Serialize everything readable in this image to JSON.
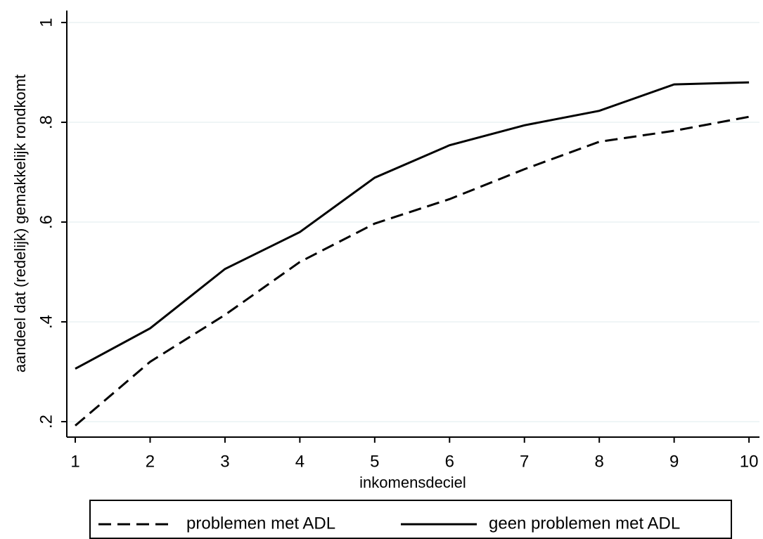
{
  "chart_data": {
    "type": "line",
    "x_label": "inkomensdeciel",
    "y_label": "aandeel dat (redelijk) gemakkelijk rondkomt",
    "x": [
      1,
      2,
      3,
      4,
      5,
      6,
      7,
      8,
      9,
      10
    ],
    "series": [
      {
        "name": "problemen met ADL",
        "color": "#000000",
        "dash": "dashed",
        "values": [
          0.192,
          0.32,
          0.414,
          0.52,
          0.597,
          0.646,
          0.706,
          0.761,
          0.783,
          0.811
        ]
      },
      {
        "name": "geen problemen met ADL",
        "color": "#000000",
        "dash": "solid",
        "values": [
          0.306,
          0.387,
          0.506,
          0.58,
          0.689,
          0.754,
          0.794,
          0.823,
          0.876,
          0.88
        ]
      }
    ],
    "xlim": [
      0.887,
      10.14
    ],
    "xticks": [
      1,
      2,
      3,
      4,
      5,
      6,
      7,
      8,
      9,
      10
    ],
    "ylim": [
      0.169,
      1.024
    ],
    "yticks": [
      {
        "value": 0.2,
        "label": ".2"
      },
      {
        "value": 0.4,
        "label": ".4"
      },
      {
        "value": 0.6,
        "label": ".6"
      },
      {
        "value": 0.8,
        "label": ".8"
      },
      1
    ],
    "grid": true,
    "legend": "bottom"
  }
}
